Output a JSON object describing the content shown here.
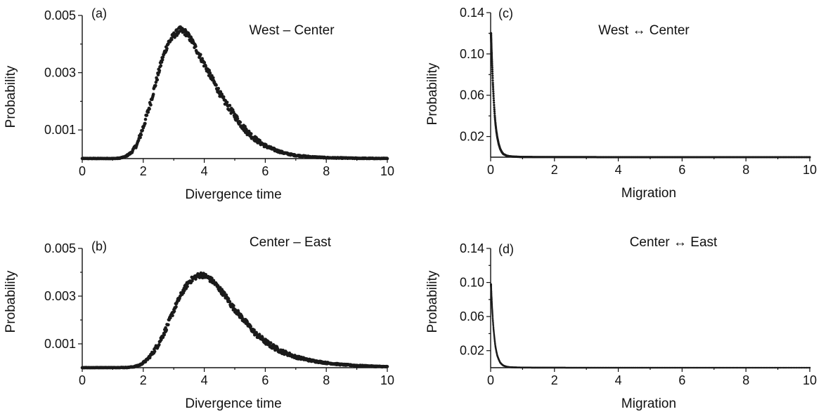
{
  "chart_data": [
    {
      "type": "scatter",
      "panel": "(a)",
      "title": "West – Center",
      "xlabel": "Divergence time",
      "ylabel": "Probability",
      "xlim": [
        0,
        10
      ],
      "ylim": [
        0,
        0.005
      ],
      "xticks": [
        "0",
        "2",
        "4",
        "6",
        "8",
        "10"
      ],
      "yticks": [
        "0.001",
        "0.003",
        "0.005"
      ],
      "grid": false,
      "color": "#1a1a1a",
      "series": [
        {
          "x": [
            0.0,
            0.5,
            1.0,
            1.2,
            1.4,
            1.6,
            1.8,
            2.0,
            2.2,
            2.4,
            2.6,
            2.8,
            3.0,
            3.2,
            3.4,
            3.6,
            3.8,
            4.0,
            4.2,
            4.4,
            4.6,
            4.8,
            5.0,
            5.2,
            5.4,
            5.6,
            5.8,
            6.0,
            6.2,
            6.4,
            6.6,
            6.8,
            7.0,
            7.5,
            8.0,
            8.5,
            9.0,
            9.5,
            10.0
          ],
          "y": [
            0.0,
            0.0,
            0.0,
            1e-05,
            6e-05,
            0.0002,
            0.0005,
            0.0011,
            0.0018,
            0.0026,
            0.0034,
            0.004,
            0.0043,
            0.0045,
            0.0044,
            0.0041,
            0.0037,
            0.0033,
            0.0029,
            0.0025,
            0.0021,
            0.0018,
            0.0015,
            0.0012,
            0.00095,
            0.00075,
            0.00058,
            0.00045,
            0.00035,
            0.00027,
            0.0002,
            0.00015,
            0.00011,
            6e-05,
            3e-05,
            2e-05,
            1e-05,
            5e-06,
            0.0
          ]
        }
      ]
    },
    {
      "type": "scatter",
      "panel": "(b)",
      "title": "Center – East",
      "xlabel": "Divergence time",
      "ylabel": "Probability",
      "xlim": [
        0,
        10
      ],
      "ylim": [
        0,
        0.005
      ],
      "xticks": [
        "0",
        "2",
        "4",
        "6",
        "8",
        "10"
      ],
      "yticks": [
        "0.001",
        "0.003",
        "0.005"
      ],
      "grid": false,
      "color": "#1a1a1a",
      "series": [
        {
          "x": [
            0.0,
            0.5,
            1.0,
            1.5,
            1.7,
            1.9,
            2.1,
            2.3,
            2.5,
            2.7,
            2.9,
            3.1,
            3.3,
            3.5,
            3.7,
            3.9,
            4.1,
            4.3,
            4.5,
            4.7,
            4.9,
            5.1,
            5.3,
            5.5,
            5.7,
            5.9,
            6.1,
            6.3,
            6.5,
            6.7,
            7.0,
            7.5,
            8.0,
            8.5,
            9.0,
            9.5,
            10.0
          ],
          "y": [
            0.0,
            0.0,
            0.0,
            1e-05,
            4e-05,
            0.00012,
            0.0003,
            0.0006,
            0.001,
            0.0015,
            0.0021,
            0.0027,
            0.0032,
            0.0036,
            0.0038,
            0.0039,
            0.0038,
            0.0036,
            0.0033,
            0.003,
            0.0026,
            0.0023,
            0.002,
            0.0017,
            0.0014,
            0.0012,
            0.001,
            0.00085,
            0.0007,
            0.0006,
            0.00045,
            0.0003,
            0.0002,
            0.00013,
            9e-05,
            6e-05,
            4e-05
          ]
        }
      ]
    },
    {
      "type": "scatter",
      "panel": "(c)",
      "title": "West ↔ Center",
      "xlabel": "Migration",
      "ylabel": "Probability",
      "xlim": [
        0,
        10
      ],
      "ylim": [
        0,
        0.14
      ],
      "xticks": [
        "0",
        "2",
        "4",
        "6",
        "8",
        "10"
      ],
      "yticks": [
        "0.02",
        "0.06",
        "0.10",
        "0.14"
      ],
      "grid": false,
      "color": "#1a1a1a",
      "series": [
        {
          "x": [
            0.01,
            0.03,
            0.05,
            0.07,
            0.09,
            0.11,
            0.13,
            0.15,
            0.18,
            0.21,
            0.25,
            0.3,
            0.35,
            0.4,
            0.5,
            0.6,
            0.8,
            1.0,
            2.0,
            4.0,
            6.0,
            8.0,
            10.0
          ],
          "y": [
            0.12,
            0.102,
            0.087,
            0.072,
            0.06,
            0.049,
            0.04,
            0.033,
            0.025,
            0.019,
            0.013,
            0.008,
            0.005,
            0.003,
            0.0015,
            0.0008,
            0.0004,
            0.0002,
            0.0001,
            0.0,
            0.0,
            0.0,
            0.0
          ]
        }
      ]
    },
    {
      "type": "scatter",
      "panel": "(d)",
      "title": "Center ↔ East",
      "xlabel": "Migration",
      "ylabel": "Probability",
      "xlim": [
        0,
        10
      ],
      "ylim": [
        0,
        0.14
      ],
      "xticks": [
        "0",
        "2",
        "4",
        "6",
        "8",
        "10"
      ],
      "yticks": [
        "0.02",
        "0.06",
        "0.10",
        "0.14"
      ],
      "grid": false,
      "color": "#1a1a1a",
      "series": [
        {
          "x": [
            0.01,
            0.03,
            0.05,
            0.07,
            0.09,
            0.11,
            0.13,
            0.15,
            0.18,
            0.21,
            0.25,
            0.3,
            0.35,
            0.4,
            0.5,
            0.6,
            0.8,
            1.0,
            2.0,
            4.0,
            6.0,
            8.0,
            10.0
          ],
          "y": [
            0.098,
            0.082,
            0.068,
            0.056,
            0.046,
            0.038,
            0.031,
            0.025,
            0.019,
            0.014,
            0.01,
            0.006,
            0.004,
            0.0025,
            0.0012,
            0.0006,
            0.0003,
            0.00015,
            5e-05,
            0.0,
            0.0,
            0.0,
            0.0
          ]
        }
      ]
    }
  ]
}
